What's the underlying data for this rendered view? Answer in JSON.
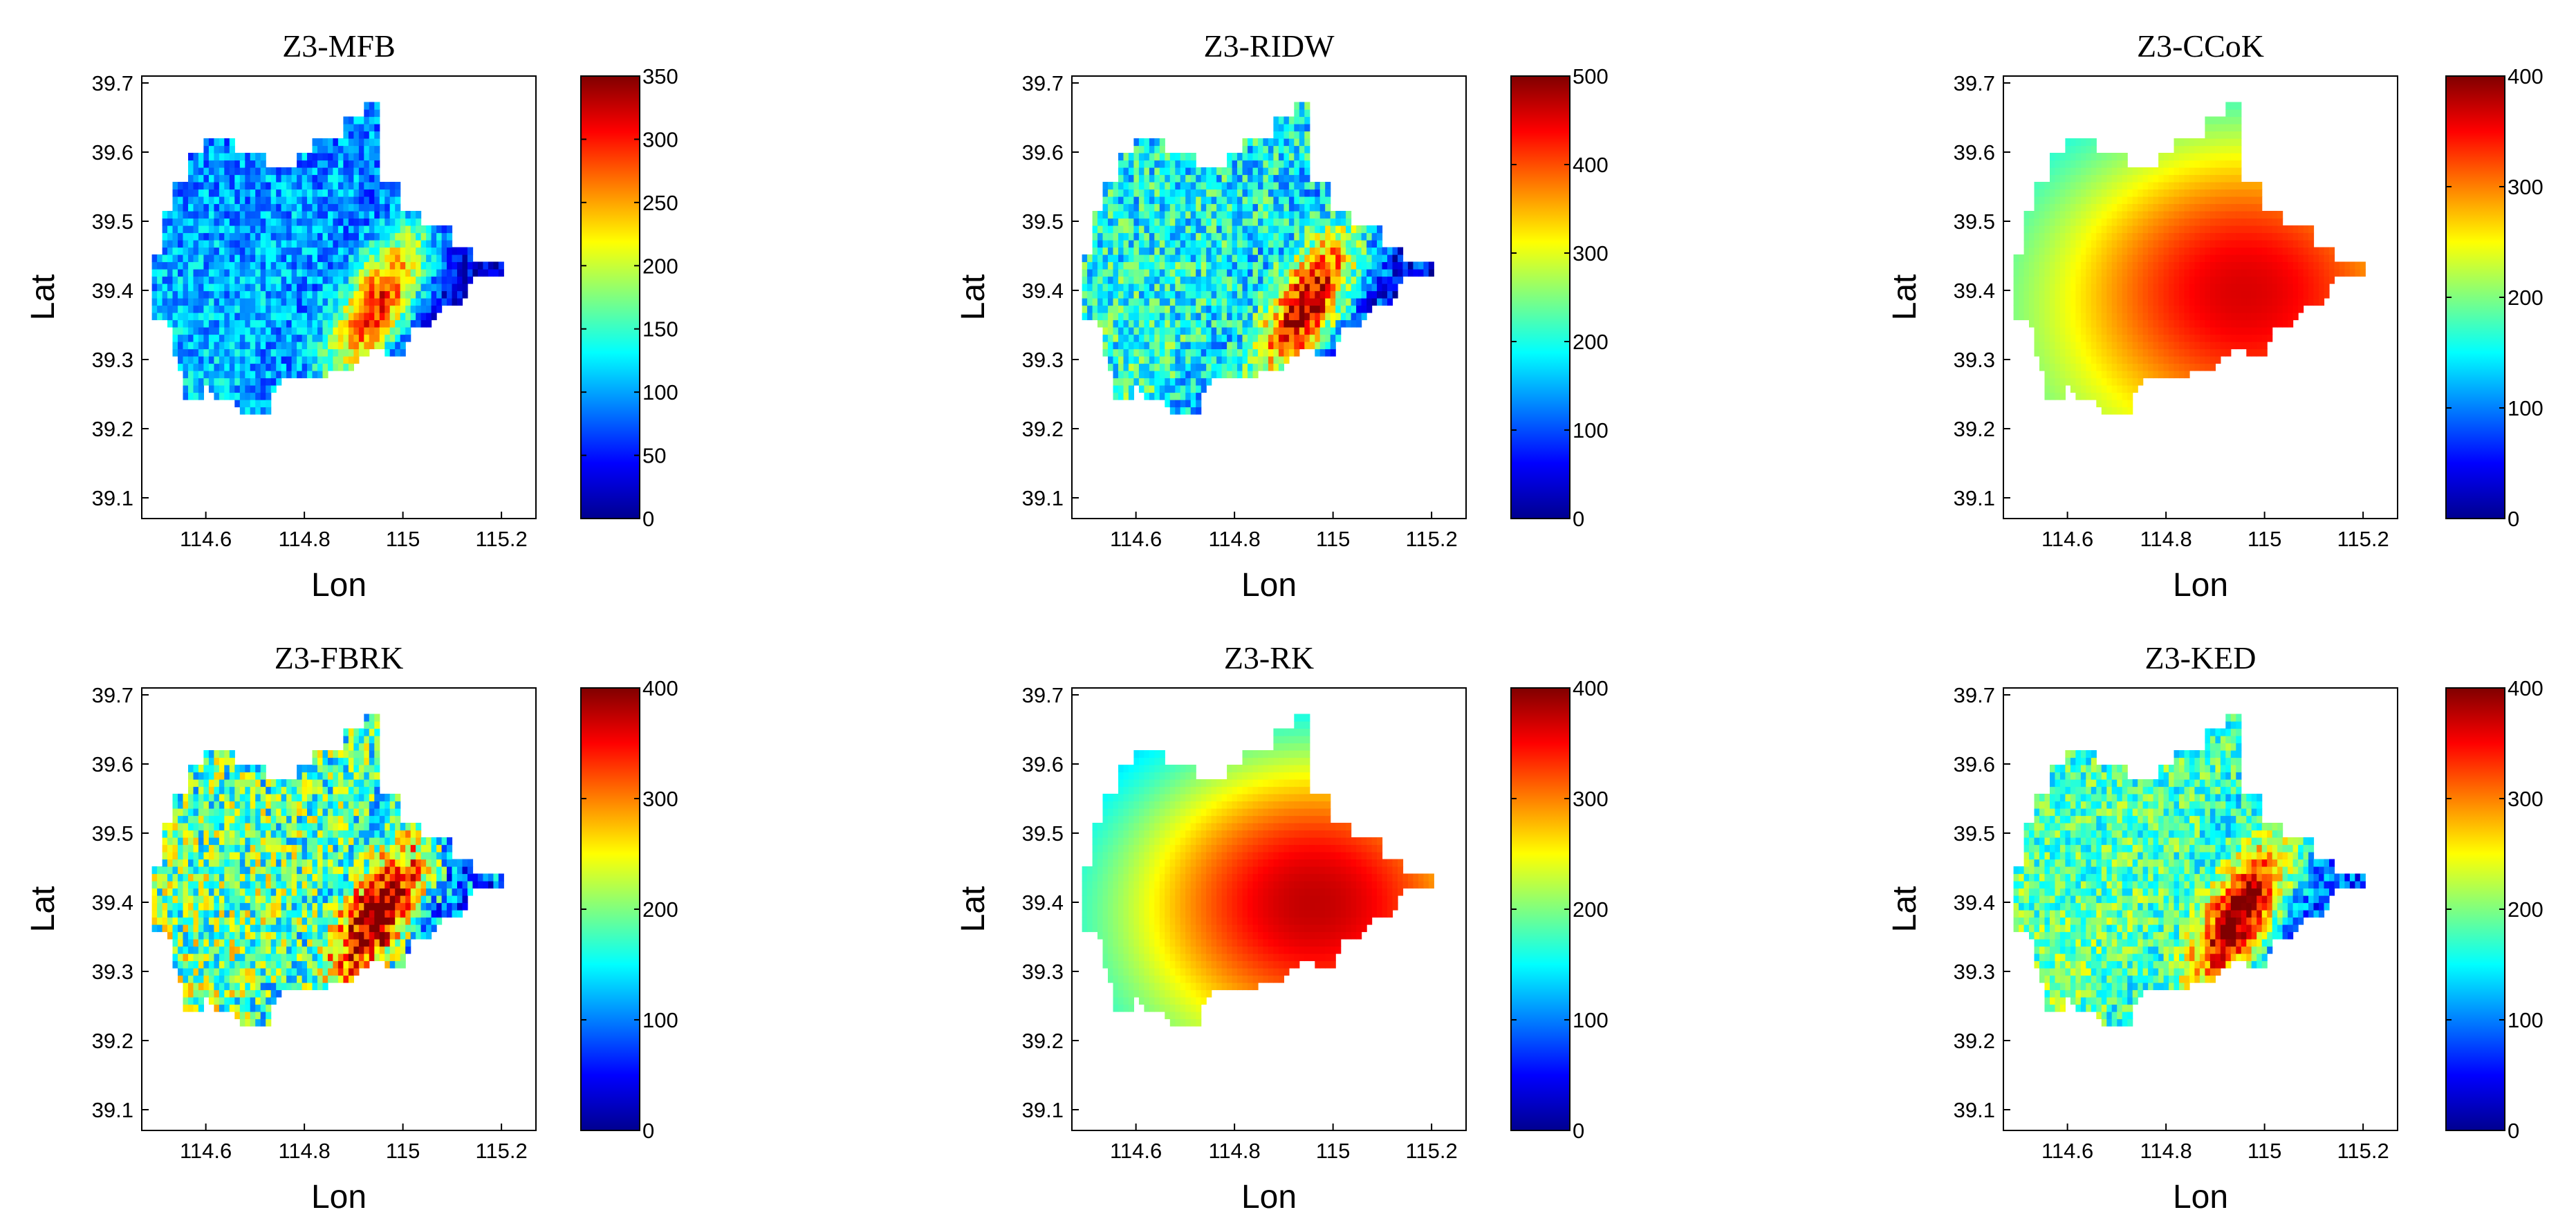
{
  "chart_data": [
    {
      "type": "heatmap",
      "title": "Z3-MFB",
      "xlabel": "Lon",
      "ylabel": "Lat",
      "xlim": [
        114.47,
        115.27
      ],
      "ylim": [
        39.07,
        39.71
      ],
      "xticks": [
        114.6,
        114.8,
        115,
        115.2
      ],
      "xtick_labels": [
        "114.6",
        "114.8",
        "115",
        "115.2"
      ],
      "yticks": [
        39.1,
        39.2,
        39.3,
        39.4,
        39.5,
        39.6,
        39.7
      ],
      "ytick_labels": [
        "39.1",
        "39.2",
        "39.3",
        "39.4",
        "39.5",
        "39.6",
        "39.7"
      ],
      "colorbar": {
        "min": 0,
        "max": 350,
        "ticks": [
          0,
          50,
          100,
          150,
          200,
          250,
          300,
          350
        ],
        "tick_labels": [
          "0",
          "50",
          "100",
          "150",
          "200",
          "250",
          "300",
          "350"
        ],
        "colormap": "jet"
      },
      "field": {
        "pattern": "ridge",
        "base": 30,
        "gradient": 90,
        "peak": 270,
        "noise": 0.12
      },
      "grid": false
    },
    {
      "type": "heatmap",
      "title": "Z3-RIDW",
      "xlabel": "Lon",
      "ylabel": "Lat",
      "xlim": [
        114.47,
        115.27
      ],
      "ylim": [
        39.07,
        39.71
      ],
      "xticks": [
        114.6,
        114.8,
        115,
        115.2
      ],
      "xtick_labels": [
        "114.6",
        "114.8",
        "115",
        "115.2"
      ],
      "yticks": [
        39.1,
        39.2,
        39.3,
        39.4,
        39.5,
        39.6,
        39.7
      ],
      "ytick_labels": [
        "39.1",
        "39.2",
        "39.3",
        "39.4",
        "39.5",
        "39.6",
        "39.7"
      ],
      "colorbar": {
        "min": 0,
        "max": 500,
        "ticks": [
          0,
          100,
          200,
          300,
          400,
          500
        ],
        "tick_labels": [
          "0",
          "100",
          "200",
          "300",
          "400",
          "500"
        ],
        "colormap": "jet"
      },
      "field": {
        "pattern": "ridge",
        "base": 70,
        "gradient": 160,
        "peak": 430,
        "noise": 0.16
      },
      "grid": false
    },
    {
      "type": "heatmap",
      "title": "Z3-CCoK",
      "xlabel": "Lon",
      "ylabel": "Lat",
      "xlim": [
        114.47,
        115.27
      ],
      "ylim": [
        39.07,
        39.71
      ],
      "xticks": [
        114.6,
        114.8,
        115,
        115.2
      ],
      "xtick_labels": [
        "114.6",
        "114.8",
        "115",
        "115.2"
      ],
      "yticks": [
        39.1,
        39.2,
        39.3,
        39.4,
        39.5,
        39.6,
        39.7
      ],
      "ytick_labels": [
        "39.1",
        "39.2",
        "39.3",
        "39.4",
        "39.5",
        "39.6",
        "39.7"
      ],
      "colorbar": {
        "min": 0,
        "max": 400,
        "ticks": [
          0,
          100,
          200,
          300,
          400
        ],
        "tick_labels": [
          "0",
          "100",
          "200",
          "300",
          "400"
        ],
        "colormap": "jet"
      },
      "field": {
        "pattern": "smooth",
        "base": 120,
        "gradient": 0,
        "peak": 360,
        "noise": 0.0
      },
      "grid": false
    },
    {
      "type": "heatmap",
      "title": "Z3-FBRK",
      "xlabel": "Lon",
      "ylabel": "Lat",
      "xlim": [
        114.47,
        115.27
      ],
      "ylim": [
        39.07,
        39.71
      ],
      "xticks": [
        114.6,
        114.8,
        115,
        115.2
      ],
      "xtick_labels": [
        "114.6",
        "114.8",
        "115",
        "115.2"
      ],
      "yticks": [
        39.1,
        39.2,
        39.3,
        39.4,
        39.5,
        39.6,
        39.7
      ],
      "ytick_labels": [
        "39.1",
        "39.2",
        "39.3",
        "39.4",
        "39.5",
        "39.6",
        "39.7"
      ],
      "colorbar": {
        "min": 0,
        "max": 400,
        "ticks": [
          0,
          100,
          200,
          300,
          400
        ],
        "tick_labels": [
          "0",
          "100",
          "200",
          "300",
          "400"
        ],
        "colormap": "jet"
      },
      "field": {
        "pattern": "ridge",
        "base": 80,
        "gradient": 140,
        "peak": 370,
        "noise": 0.22
      },
      "grid": false
    },
    {
      "type": "heatmap",
      "title": "Z3-RK",
      "xlabel": "Lon",
      "ylabel": "Lat",
      "xlim": [
        114.47,
        115.27
      ],
      "ylim": [
        39.07,
        39.71
      ],
      "xticks": [
        114.6,
        114.8,
        115,
        115.2
      ],
      "xtick_labels": [
        "114.6",
        "114.8",
        "115",
        "115.2"
      ],
      "yticks": [
        39.1,
        39.2,
        39.3,
        39.4,
        39.5,
        39.6,
        39.7
      ],
      "ytick_labels": [
        "39.1",
        "39.2",
        "39.3",
        "39.4",
        "39.5",
        "39.6",
        "39.7"
      ],
      "colorbar": {
        "min": 0,
        "max": 400,
        "ticks": [
          0,
          100,
          200,
          300,
          400
        ],
        "tick_labels": [
          "0",
          "100",
          "200",
          "300",
          "400"
        ],
        "colormap": "jet"
      },
      "field": {
        "pattern": "smooth",
        "base": 80,
        "gradient": 0,
        "peak": 370,
        "noise": 0.0
      },
      "grid": false
    },
    {
      "type": "heatmap",
      "title": "Z3-KED",
      "xlabel": "Lon",
      "ylabel": "Lat",
      "xlim": [
        114.47,
        115.27
      ],
      "ylim": [
        39.07,
        39.71
      ],
      "xticks": [
        114.6,
        114.8,
        115,
        115.2
      ],
      "xtick_labels": [
        "114.6",
        "114.8",
        "115",
        "115.2"
      ],
      "yticks": [
        39.1,
        39.2,
        39.3,
        39.4,
        39.5,
        39.6,
        39.7
      ],
      "ytick_labels": [
        "39.1",
        "39.2",
        "39.3",
        "39.4",
        "39.5",
        "39.6",
        "39.7"
      ],
      "colorbar": {
        "min": 0,
        "max": 400,
        "ticks": [
          0,
          100,
          200,
          300,
          400
        ],
        "tick_labels": [
          "0",
          "100",
          "200",
          "300",
          "400"
        ],
        "colormap": "jet"
      },
      "field": {
        "pattern": "ridge",
        "base": 80,
        "gradient": 130,
        "peak": 370,
        "noise": 0.14
      },
      "grid": false
    }
  ]
}
